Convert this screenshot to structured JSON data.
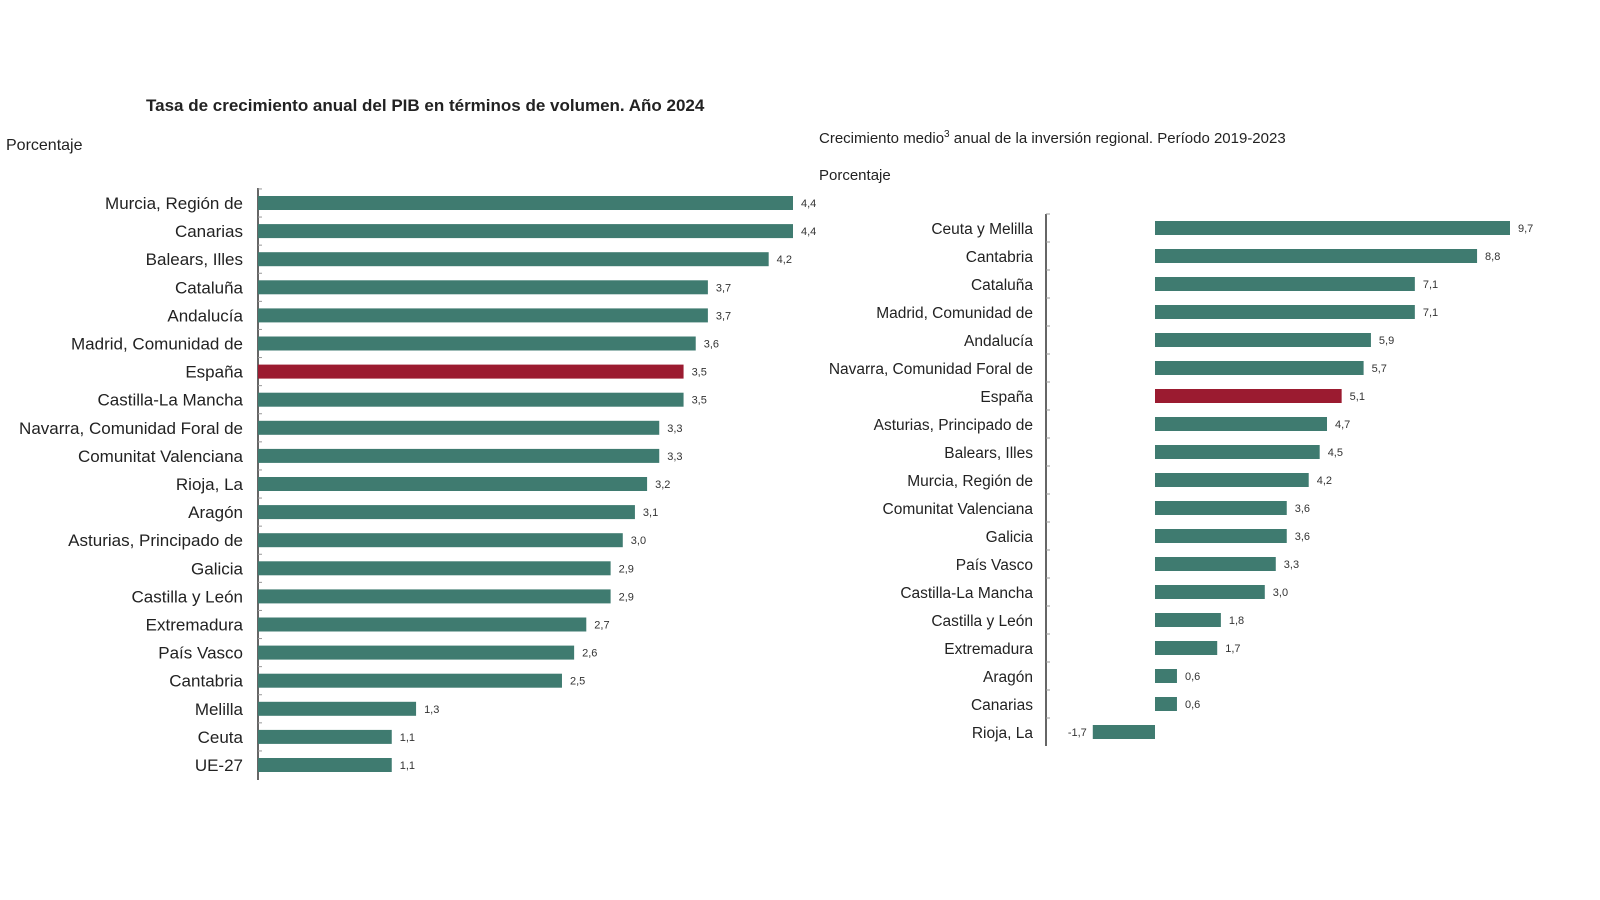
{
  "colors": {
    "bar": "#3f7b70",
    "highlight": "#9b1b30",
    "axis": "#333333"
  },
  "chart_data": [
    {
      "type": "bar",
      "orientation": "horizontal",
      "title": "Tasa de crecimiento anual del PIB en términos de volumen. Año 2024",
      "ylabel": "Porcentaje",
      "highlight": "España",
      "categories": [
        "Murcia, Región de",
        "Canarias",
        "Balears, Illes",
        "Cataluña",
        "Andalucía",
        "Madrid, Comunidad de",
        "España",
        "Castilla-La Mancha",
        "Navarra, Comunidad Foral de",
        "Comunitat Valenciana",
        "Rioja, La",
        "Aragón",
        "Asturias, Principado de",
        "Galicia",
        "Castilla y León",
        "Extremadura",
        "País Vasco",
        "Cantabria",
        "Melilla",
        "Ceuta",
        "UE-27"
      ],
      "values": [
        4.4,
        4.4,
        4.2,
        3.7,
        3.7,
        3.6,
        3.5,
        3.5,
        3.3,
        3.3,
        3.2,
        3.1,
        3.0,
        2.9,
        2.9,
        2.7,
        2.6,
        2.5,
        1.3,
        1.1,
        1.1
      ],
      "value_labels": [
        "4,4",
        "4,4",
        "4,2",
        "3,7",
        "3,7",
        "3,6",
        "3,5",
        "3,5",
        "3,3",
        "3,3",
        "3,2",
        "3,1",
        "3,0",
        "2,9",
        "2,9",
        "2,7",
        "2,6",
        "2,5",
        "1,3",
        "1,1",
        "1,1"
      ]
    },
    {
      "type": "bar",
      "orientation": "horizontal",
      "title": "Crecimiento medio",
      "title_sup": "3",
      "title_rest": " anual de la inversión regional. Período 2019-2023",
      "ylabel": "Porcentaje",
      "highlight": "España",
      "categories": [
        "Ceuta y Melilla",
        "Cantabria",
        "Cataluña",
        "Madrid, Comunidad de",
        "Andalucía",
        "Navarra, Comunidad Foral de",
        "España",
        "Asturias, Principado de",
        "Balears, Illes",
        "Murcia, Región de",
        "Comunitat Valenciana",
        "Galicia",
        "País Vasco",
        "Castilla-La Mancha",
        "Castilla y León",
        "Extremadura",
        "Aragón",
        "Canarias",
        "Rioja, La"
      ],
      "values": [
        9.7,
        8.8,
        7.1,
        7.1,
        5.9,
        5.7,
        5.1,
        4.7,
        4.5,
        4.2,
        3.6,
        3.6,
        3.3,
        3.0,
        1.8,
        1.7,
        0.6,
        0.6,
        -1.7
      ],
      "value_labels": [
        "9,7",
        "8,8",
        "7,1",
        "7,1",
        "5,9",
        "5,7",
        "5,1",
        "4,7",
        "4,5",
        "4,2",
        "3,6",
        "3,6",
        "3,3",
        "3,0",
        "1,8",
        "1,7",
        "0,6",
        "0,6",
        "-1,7"
      ]
    }
  ]
}
